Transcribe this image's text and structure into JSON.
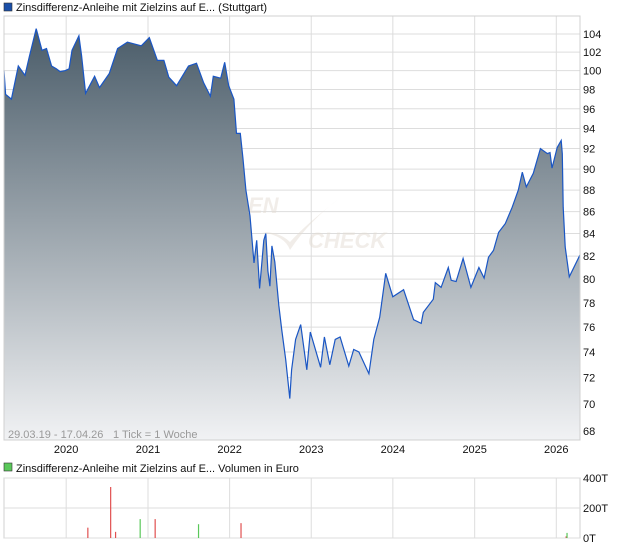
{
  "price_panel": {
    "title": "Zinsdifferenz-Anleihe mit Zielzins auf E... (Stuttgart)",
    "legend_color": "#1a4fa8",
    "range_text": "29.03.19 - 17.04.26",
    "tick_text": "1 Tick = 1 Woche",
    "watermark": "FINANZEN CHECK"
  },
  "volume_panel": {
    "title": "Zinsdifferenz-Anleihe mit Zielzins auf E... Volumen in Euro",
    "legend_color": "#5ac85a"
  },
  "colors": {
    "line": "#1a56c4",
    "fill_top": "#4a5c69",
    "fill_bottom": "#f1f2f4",
    "volume_up": "#5ac85a",
    "volume_down": "#e05050",
    "grid": "#dddddd"
  },
  "chart_data": [
    {
      "type": "area",
      "title": "Zinsdifferenz-Anleihe mit Zielzins auf E... (Stuttgart)",
      "xlim": [
        "2019-03-29",
        "2026-04-17"
      ],
      "ylim": [
        68,
        105.5
      ],
      "yscale": "log",
      "grid": true,
      "x_ticks": [
        "2020",
        "2021",
        "2022",
        "2023",
        "2024",
        "2025",
        "2026"
      ],
      "y_ticks": [
        68,
        70,
        72,
        74,
        76,
        78,
        80,
        82,
        84,
        86,
        88,
        90,
        92,
        94,
        96,
        98,
        100,
        102,
        104
      ],
      "points": [
        [
          "2019-03-29",
          100.0
        ],
        [
          "2019-04-05",
          97.5
        ],
        [
          "2019-05-01",
          97.0
        ],
        [
          "2019-06-01",
          100.5
        ],
        [
          "2019-07-01",
          99.5
        ],
        [
          "2019-07-20",
          101.5
        ],
        [
          "2019-08-20",
          104.6
        ],
        [
          "2019-09-15",
          102.2
        ],
        [
          "2019-10-05",
          102.4
        ],
        [
          "2019-10-28",
          100.5
        ],
        [
          "2019-11-18",
          100.2
        ],
        [
          "2019-12-05",
          99.9
        ],
        [
          "2019-12-28",
          100.0
        ],
        [
          "2020-01-14",
          100.2
        ],
        [
          "2020-01-27",
          102.2
        ],
        [
          "2020-02-27",
          103.8
        ],
        [
          "2020-03-10",
          101.6
        ],
        [
          "2020-03-28",
          97.6
        ],
        [
          "2020-05-07",
          99.4
        ],
        [
          "2020-05-29",
          98.2
        ],
        [
          "2020-07-12",
          99.7
        ],
        [
          "2020-08-18",
          102.4
        ],
        [
          "2020-10-01",
          103.1
        ],
        [
          "2020-12-02",
          102.7
        ],
        [
          "2021-01-07",
          103.6
        ],
        [
          "2021-02-12",
          101.1
        ],
        [
          "2021-03-13",
          101.1
        ],
        [
          "2021-04-04",
          99.3
        ],
        [
          "2021-05-09",
          98.4
        ],
        [
          "2021-07-01",
          100.5
        ],
        [
          "2021-08-06",
          100.8
        ],
        [
          "2021-09-07",
          98.7
        ],
        [
          "2021-10-07",
          97.3
        ],
        [
          "2021-10-20",
          99.4
        ],
        [
          "2021-11-22",
          99.2
        ],
        [
          "2021-12-10",
          100.9
        ],
        [
          "2021-12-28",
          98.4
        ],
        [
          "2022-01-20",
          97.0
        ],
        [
          "2022-02-01",
          93.5
        ],
        [
          "2022-02-18",
          93.5
        ],
        [
          "2022-03-02",
          91.0
        ],
        [
          "2022-03-15",
          88.0
        ],
        [
          "2022-04-02",
          85.6
        ],
        [
          "2022-04-20",
          81.4
        ],
        [
          "2022-05-02",
          83.4
        ],
        [
          "2022-05-15",
          79.2
        ],
        [
          "2022-06-03",
          83.4
        ],
        [
          "2022-06-12",
          84.0
        ],
        [
          "2022-06-21",
          80.7
        ],
        [
          "2022-06-30",
          79.4
        ],
        [
          "2022-07-09",
          82.9
        ],
        [
          "2022-07-22",
          81.5
        ],
        [
          "2022-08-09",
          77.8
        ],
        [
          "2022-08-22",
          75.8
        ],
        [
          "2022-09-09",
          73.4
        ],
        [
          "2022-09-27",
          70.4
        ],
        [
          "2022-10-05",
          72.6
        ],
        [
          "2022-10-23",
          75.0
        ],
        [
          "2022-11-15",
          76.2
        ],
        [
          "2022-12-12",
          72.6
        ],
        [
          "2022-12-28",
          75.6
        ],
        [
          "2023-02-12",
          72.8
        ],
        [
          "2023-03-01",
          75.2
        ],
        [
          "2023-03-25",
          73.0
        ],
        [
          "2023-04-18",
          75.0
        ],
        [
          "2023-05-10",
          75.2
        ],
        [
          "2023-06-18",
          72.9
        ],
        [
          "2023-07-10",
          74.2
        ],
        [
          "2023-08-02",
          74.0
        ],
        [
          "2023-09-16",
          72.3
        ],
        [
          "2023-10-08",
          75.0
        ],
        [
          "2023-11-03",
          76.8
        ],
        [
          "2023-11-30",
          80.5
        ],
        [
          "2024-01-01",
          78.5
        ],
        [
          "2024-02-18",
          79.1
        ],
        [
          "2024-04-03",
          76.6
        ],
        [
          "2024-05-07",
          76.3
        ],
        [
          "2024-05-16",
          77.2
        ],
        [
          "2024-06-30",
          78.3
        ],
        [
          "2024-07-09",
          79.7
        ],
        [
          "2024-08-04",
          79.3
        ],
        [
          "2024-09-05",
          81.0
        ],
        [
          "2024-09-18",
          79.9
        ],
        [
          "2024-10-10",
          79.8
        ],
        [
          "2024-11-10",
          81.8
        ],
        [
          "2024-12-15",
          79.3
        ],
        [
          "2025-01-20",
          81.0
        ],
        [
          "2025-02-12",
          80.1
        ],
        [
          "2025-03-04",
          81.9
        ],
        [
          "2025-03-26",
          82.5
        ],
        [
          "2025-04-18",
          84.1
        ],
        [
          "2025-05-18",
          84.9
        ],
        [
          "2025-06-18",
          86.4
        ],
        [
          "2025-07-15",
          88.0
        ],
        [
          "2025-08-02",
          89.7
        ],
        [
          "2025-08-20",
          88.3
        ],
        [
          "2025-09-20",
          89.6
        ],
        [
          "2025-10-22",
          92.0
        ],
        [
          "2025-11-22",
          91.5
        ],
        [
          "2025-12-04",
          91.6
        ],
        [
          "2025-12-13",
          90.1
        ],
        [
          "2026-01-05",
          92.1
        ],
        [
          "2026-01-23",
          92.8
        ],
        [
          "2026-01-28",
          91.5
        ],
        [
          "2026-02-01",
          86.4
        ],
        [
          "2026-02-10",
          82.8
        ],
        [
          "2026-02-28",
          80.2
        ],
        [
          "2026-04-17",
          82.1
        ]
      ]
    },
    {
      "type": "bar",
      "title": "Zinsdifferenz-Anleihe mit Zielzins auf E... Volumen in Euro",
      "ylabel": "Volumen in Euro",
      "ylim": [
        0,
        400000
      ],
      "y_ticks": [
        "0T",
        "200T",
        "400T"
      ],
      "grid": true,
      "bars": [
        {
          "date": "2020-04-07",
          "value": 69000,
          "direction": "down"
        },
        {
          "date": "2020-07-18",
          "value": 340000,
          "direction": "down"
        },
        {
          "date": "2020-08-09",
          "value": 41000,
          "direction": "down"
        },
        {
          "date": "2020-11-27",
          "value": 126000,
          "direction": "up"
        },
        {
          "date": "2021-02-02",
          "value": 126000,
          "direction": "down"
        },
        {
          "date": "2021-08-15",
          "value": 92000,
          "direction": "up"
        },
        {
          "date": "2022-02-21",
          "value": 99000,
          "direction": "down"
        },
        {
          "date": "2026-02-14",
          "value": 11000,
          "direction": "down"
        },
        {
          "date": "2026-02-18",
          "value": 34000,
          "direction": "up"
        }
      ]
    }
  ]
}
